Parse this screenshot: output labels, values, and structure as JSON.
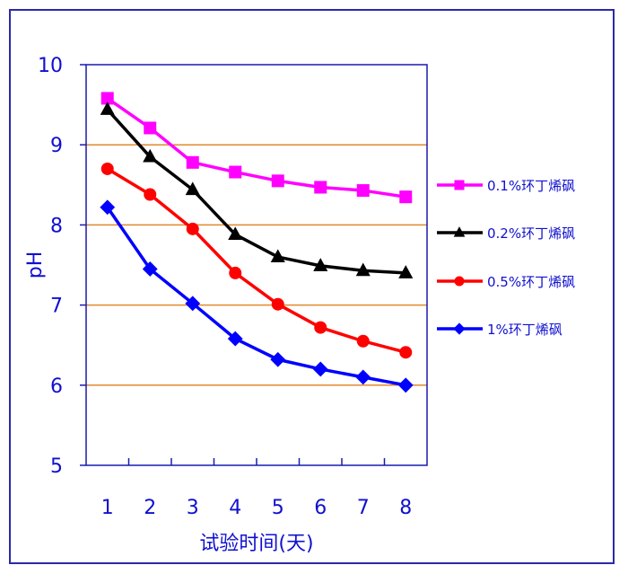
{
  "chart_data": {
    "type": "line",
    "title": "",
    "xlabel": "试验时间(天)",
    "ylabel": "pH",
    "categories": [
      "1",
      "2",
      "3",
      "4",
      "5",
      "6",
      "7",
      "8"
    ],
    "ylim": [
      5,
      10
    ],
    "yticks": [
      "5",
      "6",
      "7",
      "8",
      "9",
      "10"
    ],
    "grid": true,
    "legend_position": "right",
    "series": [
      {
        "name": "0.1%环丁烯砜",
        "color": "#ff00ff",
        "marker": "square",
        "values": [
          9.58,
          9.21,
          8.78,
          8.66,
          8.55,
          8.47,
          8.43,
          8.35
        ]
      },
      {
        "name": "0.2%环丁烯砜",
        "color": "#000000",
        "marker": "triangle",
        "values": [
          9.44,
          8.85,
          8.44,
          7.88,
          7.6,
          7.49,
          7.43,
          7.4
        ]
      },
      {
        "name": "0.5%环丁烯砜",
        "color": "#ff0000",
        "marker": "circle",
        "values": [
          8.7,
          8.38,
          7.95,
          7.4,
          7.01,
          6.72,
          6.55,
          6.41
        ]
      },
      {
        "name": "1%环丁烯砜",
        "color": "#0000ff",
        "marker": "diamond",
        "values": [
          8.22,
          7.45,
          7.02,
          6.58,
          6.32,
          6.2,
          6.1,
          6.0
        ]
      }
    ]
  },
  "colors": {
    "axis": "#1a1ab0",
    "grid": "#e08a2c",
    "frame": "#2a2aa8",
    "text": "#1010d0"
  }
}
